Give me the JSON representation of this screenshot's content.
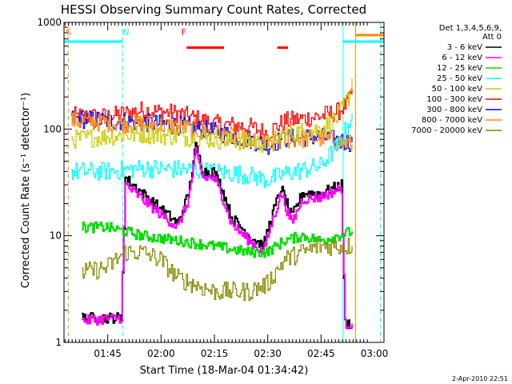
{
  "chart_data": {
    "type": "line",
    "title": "HESSI Observing Summary Count Rates, Corrected",
    "ylabel": "Corrected Count Rate (s⁻¹ detector⁻¹)",
    "xlabel": "Start Time (18-Mar-04 01:34:42)",
    "footer": "2-Apr-2010 22:51",
    "y_scale": "log",
    "ylim": [
      1,
      1000
    ],
    "y_ticks": [
      {
        "value": 1,
        "label": "1"
      },
      {
        "value": 10,
        "label": "10"
      },
      {
        "value": 100,
        "label": "100"
      },
      {
        "value": 1000,
        "label": "1000"
      }
    ],
    "xlim": [
      -2,
      88
    ],
    "x_units": "minutes after 01:34:42",
    "x_ticks": [
      {
        "value": 10.3,
        "label": "01:45"
      },
      {
        "value": 25.3,
        "label": "02:00"
      },
      {
        "value": 40.3,
        "label": "02:15"
      },
      {
        "value": 55.3,
        "label": "02:30"
      },
      {
        "value": 70.3,
        "label": "02:45"
      },
      {
        "value": 85.3,
        "label": "03:00"
      }
    ],
    "legend": {
      "placement": "right",
      "header": [
        "Det 1,3,4,5,6,9,",
        "Att 0"
      ],
      "entries": [
        {
          "label": "3 - 6 keV",
          "color": "#000000"
        },
        {
          "label": "6 - 12 keV",
          "color": "#ff00ff"
        },
        {
          "label": "12 - 25 keV",
          "color": "#00dd00"
        },
        {
          "label": "25 - 50 keV",
          "color": "#00ffff"
        },
        {
          "label": "50 - 100 keV",
          "color": "#cccc00"
        },
        {
          "label": "100 - 300 keV",
          "color": "#ff0000"
        },
        {
          "label": "300 - 800 keV",
          "color": "#0000ff"
        },
        {
          "label": "800 - 7000 keV",
          "color": "#ff8800"
        },
        {
          "label": "7000 - 20000 keV",
          "color": "#888800"
        }
      ]
    },
    "flags": [
      {
        "label": "S",
        "color": "#ff8800",
        "x": -1.5
      },
      {
        "label": "N",
        "color": "#00ffff",
        "x": 14.5
      },
      {
        "label": "F",
        "color": "#ff0000",
        "x": 31
      }
    ],
    "bars": [
      {
        "color": "#00ffff",
        "y": 660,
        "segments": [
          [
            -2,
            14.5
          ],
          [
            76.5,
            88
          ]
        ]
      },
      {
        "color": "#ff0000",
        "y": 580,
        "segments": [
          [
            32.5,
            43
          ],
          [
            58,
            61
          ]
        ]
      },
      {
        "color": "#ff8800",
        "y": 760,
        "segments": [
          [
            80,
            88
          ]
        ]
      }
    ],
    "vlines": [
      {
        "x": -0.8,
        "color": "#ff8800",
        "style": "dashed"
      },
      {
        "x": 14.5,
        "color": "#00ffff",
        "style": "dashed"
      },
      {
        "x": 76.5,
        "color": "#00ffff",
        "style": "solid"
      },
      {
        "x": 80,
        "color": "#ff8800",
        "style": "solid"
      },
      {
        "x": 87,
        "color": "#00ffff",
        "style": "dashed"
      }
    ],
    "series": [
      {
        "color": "#ff0000",
        "points": [
          [
            0,
            132
          ],
          [
            10,
            130
          ],
          [
            20,
            150
          ],
          [
            30,
            140
          ],
          [
            40,
            112
          ],
          [
            50,
            105
          ],
          [
            55,
            92
          ],
          [
            60,
            118
          ],
          [
            70,
            132
          ],
          [
            75,
            145
          ],
          [
            78,
            180
          ],
          [
            79,
            240
          ]
        ]
      },
      {
        "color": "#0000ff",
        "points": [
          [
            0,
            125
          ],
          [
            10,
            120
          ],
          [
            20,
            115
          ],
          [
            30,
            108
          ],
          [
            40,
            95
          ],
          [
            50,
            80
          ],
          [
            55,
            70
          ],
          [
            60,
            82
          ],
          [
            70,
            85
          ],
          [
            75,
            78
          ],
          [
            79,
            75
          ]
        ]
      },
      {
        "color": "#ff8800",
        "points": [
          [
            0,
            120
          ],
          [
            10,
            115
          ],
          [
            20,
            112
          ],
          [
            30,
            105
          ],
          [
            40,
            93
          ],
          [
            50,
            78
          ],
          [
            55,
            68
          ],
          [
            60,
            80
          ],
          [
            70,
            82
          ],
          [
            75,
            76
          ],
          [
            79,
            72
          ]
        ]
      },
      {
        "color": "#cccc00",
        "points": [
          [
            0,
            80
          ],
          [
            10,
            85
          ],
          [
            20,
            90
          ],
          [
            30,
            85
          ],
          [
            40,
            80
          ],
          [
            50,
            76
          ],
          [
            55,
            72
          ],
          [
            60,
            90
          ],
          [
            70,
            100
          ],
          [
            75,
            130
          ],
          [
            78,
            200
          ],
          [
            79,
            300
          ]
        ]
      },
      {
        "color": "#00ffff",
        "points": [
          [
            0,
            40
          ],
          [
            10,
            40
          ],
          [
            20,
            43
          ],
          [
            30,
            42
          ],
          [
            40,
            40
          ],
          [
            50,
            37
          ],
          [
            55,
            33
          ],
          [
            60,
            38
          ],
          [
            70,
            45
          ],
          [
            75,
            70
          ],
          [
            78,
            110
          ],
          [
            79,
            140
          ]
        ]
      },
      {
        "color": "#000000",
        "points": [
          [
            3,
            1.7
          ],
          [
            14,
            1.7
          ],
          [
            15.2,
            35
          ],
          [
            20,
            25
          ],
          [
            25,
            18
          ],
          [
            30,
            13
          ],
          [
            33,
            25
          ],
          [
            35,
            70
          ],
          [
            37,
            40
          ],
          [
            40,
            40
          ],
          [
            42,
            30
          ],
          [
            45,
            15
          ],
          [
            50,
            10
          ],
          [
            54,
            8
          ],
          [
            56,
            14
          ],
          [
            59,
            28
          ],
          [
            62,
            15
          ],
          [
            65,
            25
          ],
          [
            70,
            25
          ],
          [
            76,
            30
          ],
          [
            77,
            1.5
          ],
          [
            78,
            1.5
          ],
          [
            79,
            1.5
          ]
        ]
      },
      {
        "color": "#ff00ff",
        "points": [
          [
            3,
            1.6
          ],
          [
            14,
            1.7
          ],
          [
            15.2,
            30
          ],
          [
            20,
            22
          ],
          [
            25,
            16
          ],
          [
            30,
            12
          ],
          [
            33,
            22
          ],
          [
            35,
            60
          ],
          [
            37,
            35
          ],
          [
            40,
            35
          ],
          [
            42,
            26
          ],
          [
            45,
            13
          ],
          [
            50,
            9
          ],
          [
            54,
            7
          ],
          [
            56,
            12
          ],
          [
            59,
            25
          ],
          [
            62,
            13
          ],
          [
            65,
            22
          ],
          [
            70,
            23
          ],
          [
            76,
            28
          ],
          [
            77,
            1.5
          ],
          [
            79,
            1.5
          ]
        ]
      },
      {
        "color": "#00dd00",
        "points": [
          [
            3,
            12
          ],
          [
            10,
            12
          ],
          [
            15,
            11
          ],
          [
            20,
            10
          ],
          [
            30,
            9
          ],
          [
            40,
            8
          ],
          [
            50,
            7
          ],
          [
            55,
            7
          ],
          [
            60,
            9
          ],
          [
            65,
            10
          ],
          [
            70,
            9
          ],
          [
            75,
            10
          ],
          [
            79,
            11
          ]
        ]
      },
      {
        "color": "#888800",
        "points": [
          [
            3,
            4.5
          ],
          [
            10,
            5
          ],
          [
            15,
            7
          ],
          [
            20,
            7
          ],
          [
            25,
            6
          ],
          [
            30,
            4
          ],
          [
            40,
            3
          ],
          [
            50,
            3
          ],
          [
            55,
            3.5
          ],
          [
            60,
            6
          ],
          [
            65,
            7
          ],
          [
            70,
            8
          ],
          [
            75,
            8
          ],
          [
            79,
            8
          ]
        ]
      }
    ]
  }
}
